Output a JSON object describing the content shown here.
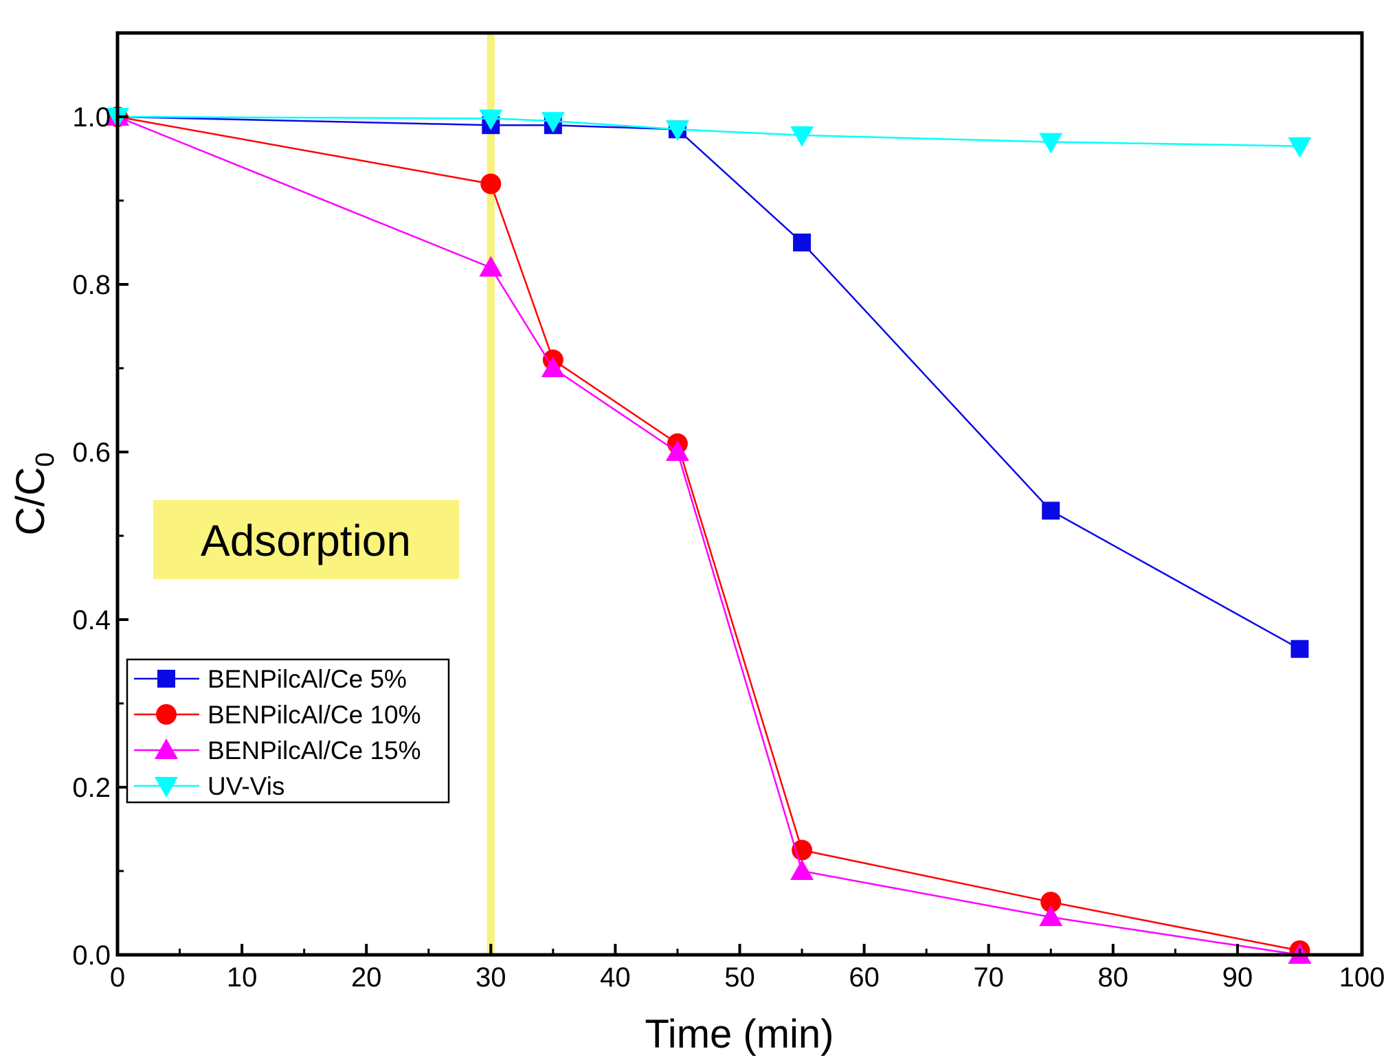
{
  "chart_data": {
    "type": "line",
    "title": "",
    "xlabel": "Time (min)",
    "ylabel_main": "C/C",
    "ylabel_sub": "0",
    "xlim": [
      0,
      100
    ],
    "ylim": [
      0,
      1.1
    ],
    "xticks": [
      0,
      10,
      20,
      30,
      40,
      50,
      60,
      70,
      80,
      90,
      100
    ],
    "yticks": [
      "0.0",
      "0.2",
      "0.4",
      "0.6",
      "0.8",
      "1.0"
    ],
    "grid": false,
    "legend_position": "middle-left",
    "vertical_marker": {
      "x": 30,
      "color": "#F7F27A"
    },
    "annotation": {
      "text": "Adsorption",
      "background": "#FAF47E"
    },
    "series": [
      {
        "name": "BENPilcAl/Ce 5%",
        "color": "#0A0AE6",
        "marker": "square",
        "x": [
          0,
          30,
          35,
          45,
          55,
          75,
          95
        ],
        "y": [
          1.0,
          0.99,
          0.99,
          0.985,
          0.85,
          0.53,
          0.365
        ]
      },
      {
        "name": "BENPilcAl/Ce 10%",
        "color": "#FF0000",
        "marker": "circle",
        "x": [
          0,
          30,
          35,
          45,
          55,
          75,
          95
        ],
        "y": [
          1.0,
          0.92,
          0.71,
          0.61,
          0.125,
          0.063,
          0.005
        ]
      },
      {
        "name": "BENPilcAl/Ce 15%",
        "color": "#FF00FF",
        "marker": "triangle-up",
        "x": [
          0,
          30,
          35,
          45,
          55,
          75,
          95
        ],
        "y": [
          1.0,
          0.82,
          0.7,
          0.6,
          0.1,
          0.045,
          0.0
        ]
      },
      {
        "name": "UV-Vis",
        "color": "#00FFFF",
        "marker": "triangle-down",
        "x": [
          0,
          30,
          35,
          45,
          55,
          75,
          95
        ],
        "y": [
          1.0,
          0.998,
          0.995,
          0.985,
          0.978,
          0.97,
          0.965
        ]
      }
    ]
  }
}
